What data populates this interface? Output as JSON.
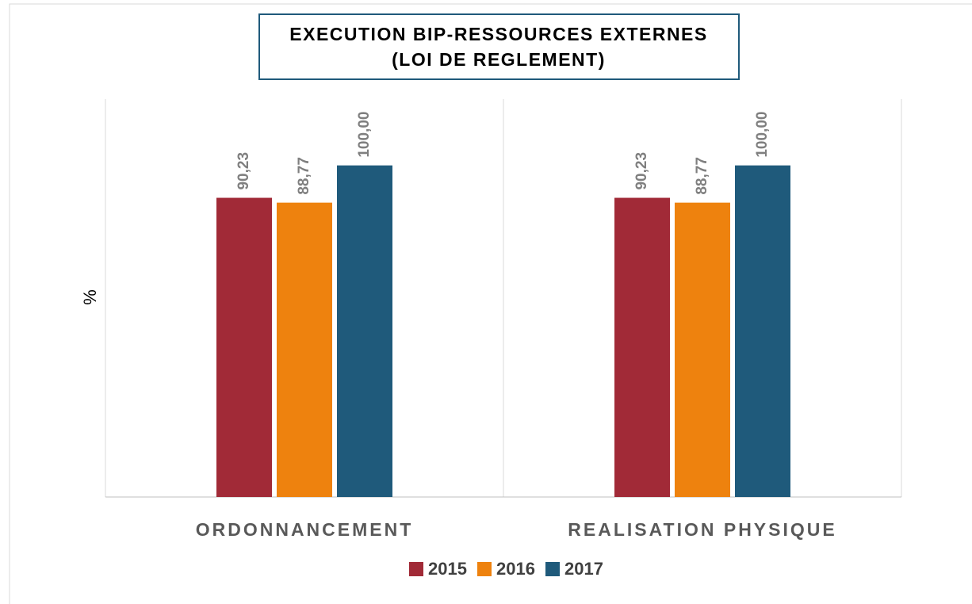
{
  "chart_data": {
    "type": "bar",
    "title": [
      "EXECUTION BIP-RESSOURCES EXTERNES",
      "(LOI DE REGLEMENT)"
    ],
    "y_label": "%",
    "categories": [
      "ORDONNANCEMENT",
      "REALISATION PHYSIQUE"
    ],
    "series": [
      {
        "name": "2015",
        "color": "#a12a37",
        "values": [
          90.23,
          90.23
        ],
        "value_labels": [
          "90,23",
          "90,23"
        ]
      },
      {
        "name": "2016",
        "color": "#ee820e",
        "values": [
          88.77,
          88.77
        ],
        "value_labels": [
          "88,77",
          "88,77"
        ]
      },
      {
        "name": "2017",
        "color": "#1f5a7b",
        "values": [
          100,
          100
        ],
        "value_labels": [
          "100,00",
          "100,00"
        ]
      }
    ],
    "ylim": [
      0,
      120
    ],
    "legend": "bottom"
  }
}
